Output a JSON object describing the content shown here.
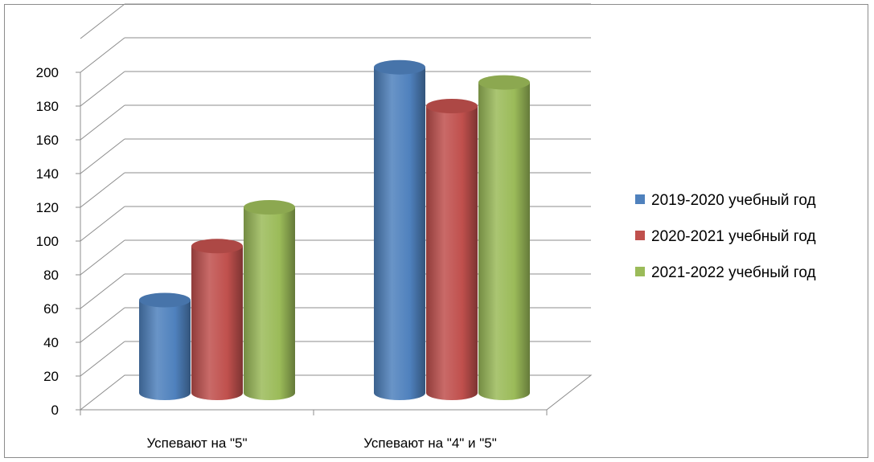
{
  "chart_data": {
    "type": "bar",
    "title": "",
    "xlabel": "",
    "ylabel": "",
    "categories": [
      "Успевают на \"5\"",
      "Успевают на \"4\" и \"5\""
    ],
    "series": [
      {
        "name": "2019-2020 учебный год",
        "values": [
          55,
          193
        ],
        "color": "#4f81bd"
      },
      {
        "name": "2020-2021 учебный год",
        "values": [
          87,
          170
        ],
        "color": "#c0504d"
      },
      {
        "name": "2021-2022 учебный год",
        "values": [
          110,
          184
        ],
        "color": "#9bbb59"
      }
    ],
    "ylim": [
      0,
      200
    ],
    "yticks": [
      "0",
      "20",
      "40",
      "60",
      "80",
      "100",
      "120",
      "140",
      "160",
      "180",
      "200"
    ],
    "grid": true,
    "legend_position": "right",
    "style": "3d-cylinder"
  }
}
